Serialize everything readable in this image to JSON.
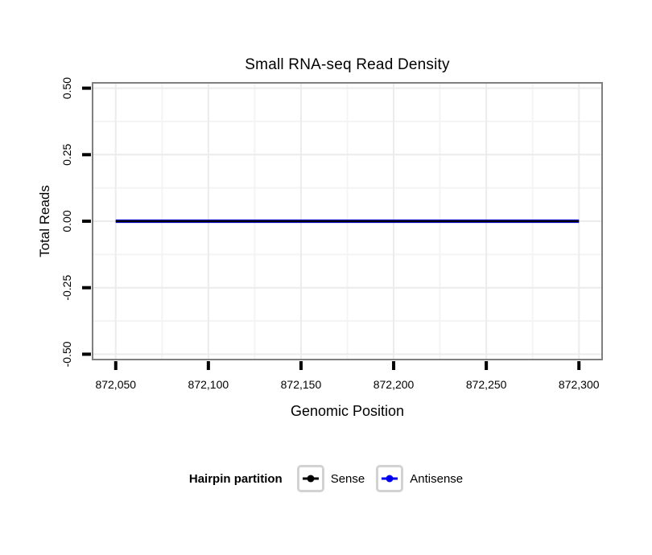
{
  "chart_data": {
    "type": "line",
    "title": "Small RNA-seq Read Density",
    "xlabel": "Genomic Position",
    "ylabel": "Total Reads",
    "xlim": [
      872037.5,
      872312.5
    ],
    "ylim": [
      -0.52,
      0.52
    ],
    "grid": "major+minor",
    "legend_position": "bottom",
    "x_ticks": {
      "values": [
        872050,
        872100,
        872150,
        872200,
        872250,
        872300
      ],
      "labels": [
        "872,050",
        "872,100",
        "872,150",
        "872,200",
        "872,250",
        "872,300"
      ]
    },
    "y_ticks": {
      "values": [
        0.5,
        0.25,
        0,
        -0.25,
        -0.5
      ],
      "labels": [
        "0.50",
        "0.25",
        "0.00",
        "-0.25",
        "-0.50"
      ]
    },
    "series": [
      {
        "name": "Sense",
        "color": "#000000",
        "x": [
          872050,
          872300
        ],
        "y": [
          0,
          0
        ]
      },
      {
        "name": "Antisense",
        "color": "#0000EE",
        "x": [
          872050,
          872300
        ],
        "y": [
          0,
          0
        ]
      }
    ],
    "legend": {
      "title": "Hairpin partition"
    }
  },
  "colors": {
    "panel_border": "#7f7f7f",
    "grid_major": "#ececec",
    "grid_minor": "#f4f4f4",
    "tick_mark": "#000000",
    "legend_key_border": "#d2d2d2",
    "background": "#ffffff"
  }
}
